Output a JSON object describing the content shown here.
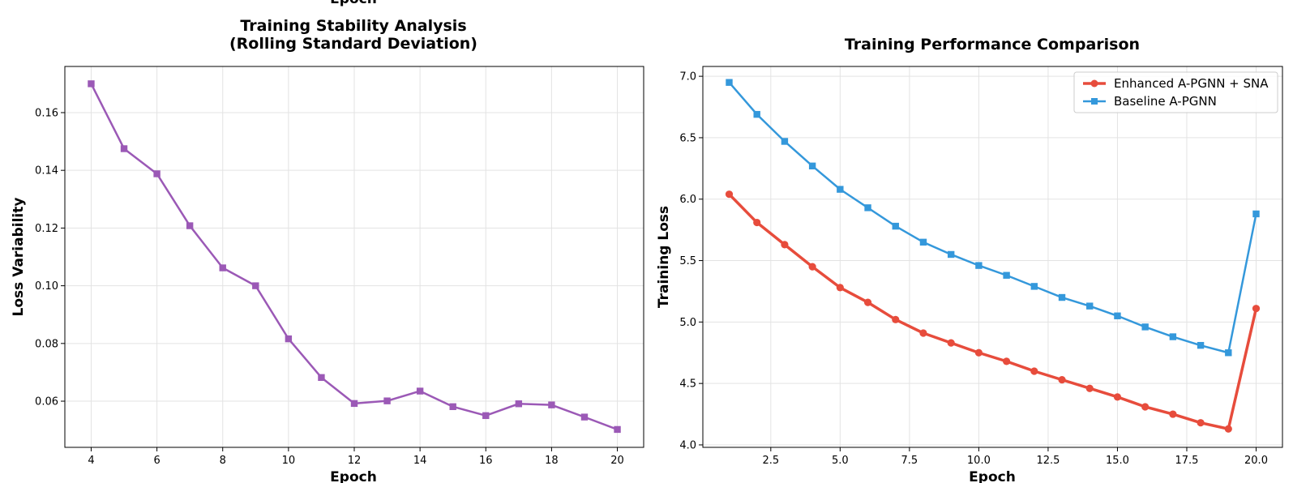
{
  "chart_data": [
    {
      "type": "line",
      "title_line1": "Training Stability Analysis",
      "title_line2": "(Rolling Standard Deviation)",
      "xlabel": "Epoch",
      "ylabel": "Loss Variability",
      "top_cropped_label": "Epoch",
      "xlim": [
        3.2,
        20.8
      ],
      "ylim": [
        0.044,
        0.176
      ],
      "xticks": [
        4,
        6,
        8,
        10,
        12,
        14,
        16,
        18,
        20
      ],
      "yticks": [
        0.06,
        0.08,
        0.1,
        0.12,
        0.14,
        0.16
      ],
      "ytick_labels": [
        "0.06",
        "0.08",
        "0.10",
        "0.12",
        "0.14",
        "0.16"
      ],
      "grid": true,
      "series": [
        {
          "color": "#9b59b6",
          "marker": "square",
          "x": [
            4,
            5,
            6,
            7,
            8,
            9,
            10,
            11,
            12,
            13,
            14,
            15,
            16,
            17,
            18,
            19,
            20
          ],
          "y": [
            0.17,
            0.1475,
            0.1388,
            0.1208,
            0.1062,
            0.1,
            0.0816,
            0.0682,
            0.0592,
            0.0601,
            0.0635,
            0.0581,
            0.055,
            0.0591,
            0.0587,
            0.0545,
            0.0502
          ]
        }
      ]
    },
    {
      "type": "line",
      "title": "Training Performance Comparison",
      "xlabel": "Epoch",
      "ylabel": "Training Loss",
      "xlim": [
        0.05,
        20.95
      ],
      "ylim": [
        3.98,
        7.08
      ],
      "xticks": [
        2.5,
        5.0,
        7.5,
        10.0,
        12.5,
        15.0,
        17.5,
        20.0
      ],
      "xtick_labels": [
        "2.5",
        "5.0",
        "7.5",
        "10.0",
        "12.5",
        "15.0",
        "17.5",
        "20.0"
      ],
      "yticks": [
        4.0,
        4.5,
        5.0,
        5.5,
        6.0,
        6.5,
        7.0
      ],
      "ytick_labels": [
        "4.0",
        "4.5",
        "5.0",
        "5.5",
        "6.0",
        "6.5",
        "7.0"
      ],
      "grid": true,
      "legend_position": "top-right",
      "series": [
        {
          "name": "Enhanced A-PGNN + SNA",
          "color": "#e74c3c",
          "marker": "circle",
          "x": [
            1,
            2,
            3,
            4,
            5,
            6,
            7,
            8,
            9,
            10,
            11,
            12,
            13,
            14,
            15,
            16,
            17,
            18,
            19,
            20
          ],
          "y": [
            6.04,
            5.81,
            5.63,
            5.45,
            5.28,
            5.16,
            5.02,
            4.91,
            4.83,
            4.75,
            4.68,
            4.6,
            4.53,
            4.46,
            4.39,
            4.31,
            4.25,
            4.18,
            4.13,
            5.11
          ]
        },
        {
          "name": "Baseline A-PGNN",
          "color": "#3498db",
          "marker": "square",
          "x": [
            1,
            2,
            3,
            4,
            5,
            6,
            7,
            8,
            9,
            10,
            11,
            12,
            13,
            14,
            15,
            16,
            17,
            18,
            19,
            20
          ],
          "y": [
            6.95,
            6.69,
            6.47,
            6.27,
            6.08,
            5.93,
            5.78,
            5.65,
            5.55,
            5.46,
            5.38,
            5.29,
            5.2,
            5.13,
            5.05,
            4.96,
            4.88,
            4.81,
            4.75,
            5.88
          ]
        }
      ]
    }
  ]
}
